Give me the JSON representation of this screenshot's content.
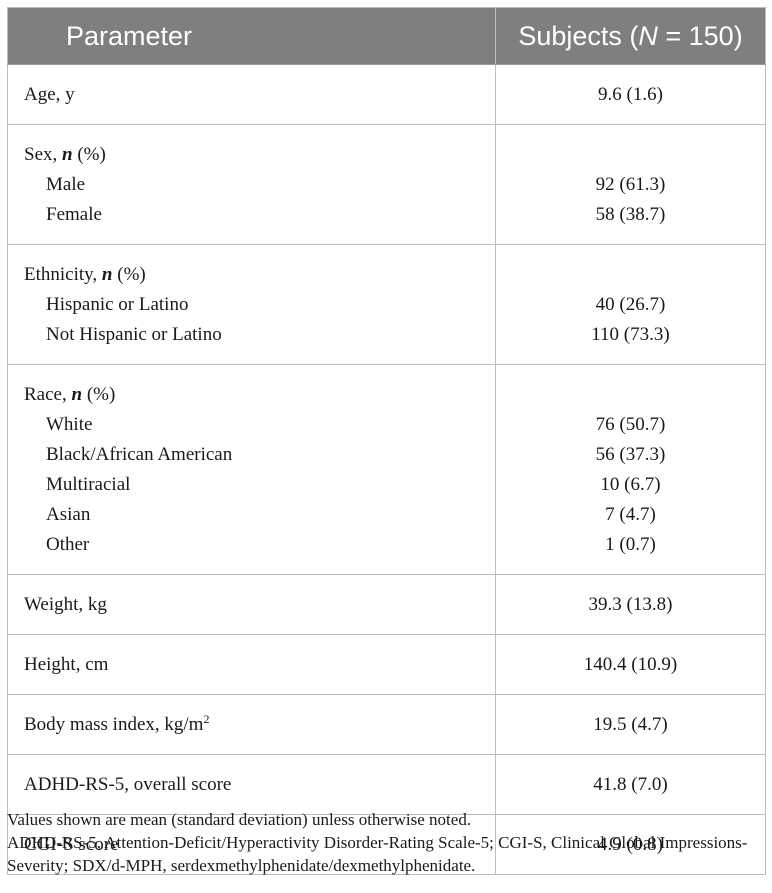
{
  "table": {
    "header": {
      "parameter": "Parameter",
      "subjects_prefix": "Subjects (",
      "subjects_n": "N",
      "subjects_suffix": " = 150)"
    },
    "rows": [
      {
        "label": "Age, y",
        "value": "9.6 (1.6)"
      },
      {
        "label_prefix": "Sex, ",
        "label_n": "n",
        "label_suffix": " (%)",
        "items": [
          {
            "label": "Male",
            "value": "92 (61.3)"
          },
          {
            "label": "Female",
            "value": "58 (38.7)"
          }
        ]
      },
      {
        "label_prefix": "Ethnicity, ",
        "label_n": "n",
        "label_suffix": " (%)",
        "items": [
          {
            "label": "Hispanic or Latino",
            "value": "40 (26.7)"
          },
          {
            "label": "Not Hispanic or Latino",
            "value": "110 (73.3)"
          }
        ]
      },
      {
        "label_prefix": "Race, ",
        "label_n": "n",
        "label_suffix": " (%)",
        "items": [
          {
            "label": "White",
            "value": "76 (50.7)"
          },
          {
            "label": "Black/African American",
            "value": "56 (37.3)"
          },
          {
            "label": "Multiracial",
            "value": "10 (6.7)"
          },
          {
            "label": "Asian",
            "value": "7 (4.7)"
          },
          {
            "label": "Other",
            "value": "1 (0.7)"
          }
        ]
      },
      {
        "label": "Weight, kg",
        "value": "39.3 (13.8)"
      },
      {
        "label": "Height, cm",
        "value": "140.4 (10.9)"
      },
      {
        "label": "Body mass index, kg/m",
        "label_sup": "2",
        "value": "19.5 (4.7)"
      },
      {
        "label": "ADHD-RS-5, overall score",
        "value": "41.8 (7.0)"
      },
      {
        "label": "CGI-S score",
        "value": "4.9 (0.8)"
      }
    ]
  },
  "footnote": {
    "line1": "Values shown are mean (standard deviation) unless otherwise noted.",
    "line2": "ADHD-RS-5, Attention-Deficit/Hyperactivity Disorder-Rating Scale-5; CGI-S, Clinical Global Impressions-Severity; SDX/d-MPH, serdexmethylphenidate/dexmethylphenidate."
  }
}
